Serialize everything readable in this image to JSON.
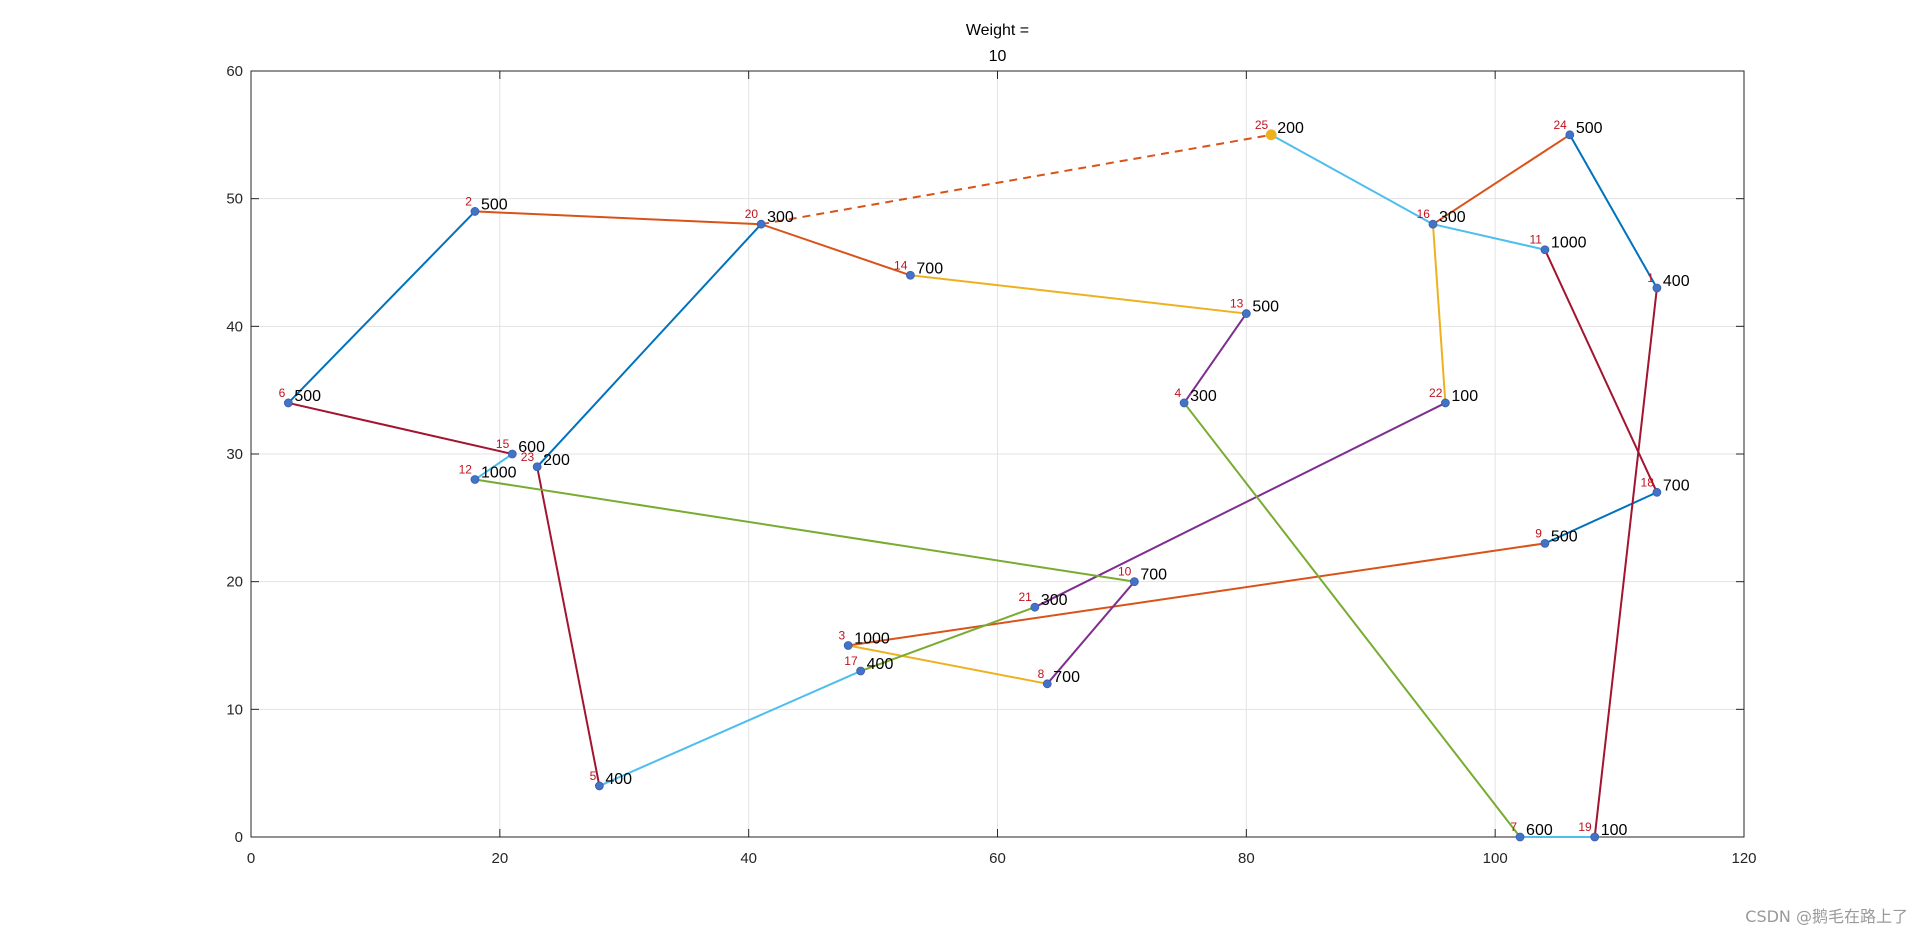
{
  "chart_data": {
    "type": "line",
    "title": [
      "Weight =",
      "10"
    ],
    "xlim": [
      0,
      120
    ],
    "ylim": [
      0,
      60
    ],
    "xticks": [
      0,
      20,
      40,
      60,
      80,
      100,
      120
    ],
    "yticks": [
      0,
      10,
      20,
      30,
      40,
      50,
      60
    ],
    "grid": true,
    "points": [
      {
        "id": "1",
        "x": 113,
        "y": 43,
        "w": "400"
      },
      {
        "id": "2",
        "x": 18,
        "y": 49,
        "w": "500"
      },
      {
        "id": "3",
        "x": 48,
        "y": 15,
        "w": "1000"
      },
      {
        "id": "4",
        "x": 75,
        "y": 34,
        "w": "300"
      },
      {
        "id": "5",
        "x": 28,
        "y": 4,
        "w": "400"
      },
      {
        "id": "6",
        "x": 3,
        "y": 34,
        "w": "500"
      },
      {
        "id": "7",
        "x": 102,
        "y": 0,
        "w": "600"
      },
      {
        "id": "8",
        "x": 64,
        "y": 12,
        "w": "700"
      },
      {
        "id": "9",
        "x": 104,
        "y": 23,
        "w": "500"
      },
      {
        "id": "10",
        "x": 71,
        "y": 20,
        "w": "700"
      },
      {
        "id": "11",
        "x": 104,
        "y": 46,
        "w": "1000"
      },
      {
        "id": "12",
        "x": 18,
        "y": 28,
        "w": "1000"
      },
      {
        "id": "13",
        "x": 80,
        "y": 41,
        "w": "500"
      },
      {
        "id": "14",
        "x": 53,
        "y": 44,
        "w": "700"
      },
      {
        "id": "15",
        "x": 21,
        "y": 30,
        "w": "600"
      },
      {
        "id": "16",
        "x": 95,
        "y": 48,
        "w": "300"
      },
      {
        "id": "17",
        "x": 49,
        "y": 13,
        "w": "400"
      },
      {
        "id": "18",
        "x": 113,
        "y": 27,
        "w": "700"
      },
      {
        "id": "19",
        "x": 108,
        "y": 0,
        "w": "100"
      },
      {
        "id": "20",
        "x": 41,
        "y": 48,
        "w": "300"
      },
      {
        "id": "21",
        "x": 63,
        "y": 18,
        "w": "300"
      },
      {
        "id": "22",
        "x": 96,
        "y": 34,
        "w": "100"
      },
      {
        "id": "23",
        "x": 23,
        "y": 29,
        "w": "200"
      },
      {
        "id": "24",
        "x": 106,
        "y": 55,
        "w": "500"
      },
      {
        "id": "25",
        "x": 82,
        "y": 55,
        "w": "200"
      }
    ],
    "routes": [
      {
        "color": "#0072BD",
        "dashed": false,
        "path": [
          "24",
          "1"
        ]
      },
      {
        "color": "#0072BD",
        "dashed": false,
        "path": [
          "9",
          "18"
        ]
      },
      {
        "color": "#0072BD",
        "dashed": false,
        "path": [
          "20",
          "23"
        ]
      },
      {
        "color": "#0072BD",
        "dashed": false,
        "path": [
          "2",
          "6"
        ]
      },
      {
        "color": "#A2142F",
        "dashed": false,
        "path": [
          "11",
          "18"
        ]
      },
      {
        "color": "#A2142F",
        "dashed": false,
        "path": [
          "1",
          "19"
        ]
      },
      {
        "color": "#A2142F",
        "dashed": false,
        "path": [
          "6",
          "15"
        ]
      },
      {
        "color": "#A2142F",
        "dashed": false,
        "path": [
          "23",
          "5"
        ]
      },
      {
        "color": "#D95319",
        "dashed": false,
        "path": [
          "16",
          "24"
        ]
      },
      {
        "color": "#D95319",
        "dashed": false,
        "path": [
          "3",
          "9"
        ]
      },
      {
        "color": "#D95319",
        "dashed": false,
        "path": [
          "2",
          "20",
          "14"
        ]
      },
      {
        "color": "#D95319",
        "dashed": true,
        "path": [
          "20",
          "25"
        ]
      },
      {
        "color": "#4DBEEE",
        "dashed": false,
        "path": [
          "25",
          "16",
          "11"
        ]
      },
      {
        "color": "#4DBEEE",
        "dashed": false,
        "path": [
          "7",
          "19"
        ]
      },
      {
        "color": "#4DBEEE",
        "dashed": false,
        "path": [
          "5",
          "17"
        ]
      },
      {
        "color": "#4DBEEE",
        "dashed": false,
        "path": [
          "12",
          "15"
        ]
      },
      {
        "color": "#EDB120",
        "dashed": false,
        "path": [
          "16",
          "22"
        ]
      },
      {
        "color": "#EDB120",
        "dashed": false,
        "path": [
          "14",
          "13"
        ]
      },
      {
        "color": "#EDB120",
        "dashed": false,
        "path": [
          "3",
          "8"
        ]
      },
      {
        "color": "#7E2F8E",
        "dashed": false,
        "path": [
          "13",
          "4"
        ]
      },
      {
        "color": "#7E2F8E",
        "dashed": false,
        "path": [
          "22",
          "21"
        ]
      },
      {
        "color": "#7E2F8E",
        "dashed": false,
        "path": [
          "10",
          "8"
        ]
      },
      {
        "color": "#77AC30",
        "dashed": false,
        "path": [
          "4",
          "7"
        ]
      },
      {
        "color": "#77AC30",
        "dashed": false,
        "path": [
          "12",
          "10"
        ]
      },
      {
        "color": "#77AC30",
        "dashed": false,
        "path": [
          "17",
          "21"
        ]
      }
    ],
    "marker_color": "#4472C4",
    "depot_marker_color": "#EDB120",
    "depot_id": "25"
  },
  "watermark": "CSDN @鹅毛在路上了"
}
